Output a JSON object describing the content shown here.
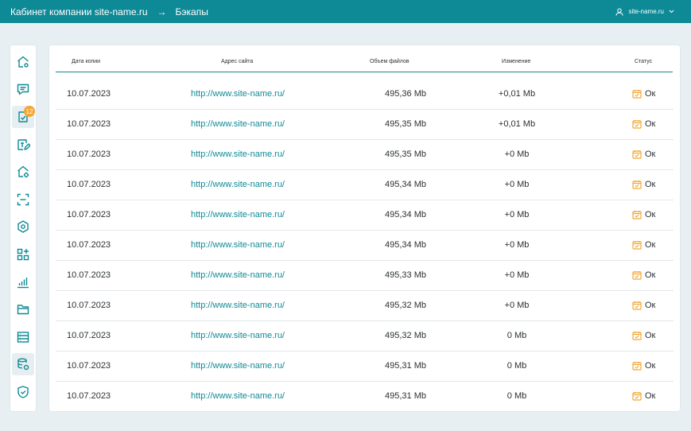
{
  "header": {
    "company": "Кабинет компании site-name.ru",
    "current": "Бэкапы",
    "account": "site-name.ru"
  },
  "sidebar": {
    "badge_count": "12",
    "items": [
      {
        "icon": "home-settings-icon"
      },
      {
        "icon": "chat-icon"
      },
      {
        "icon": "document-check-icon",
        "active": true
      },
      {
        "icon": "text-edit-icon"
      },
      {
        "icon": "home-gear-icon"
      },
      {
        "icon": "scan-frame-icon"
      },
      {
        "icon": "hexagon-settings-icon"
      },
      {
        "icon": "apps-add-icon"
      },
      {
        "icon": "bar-chart-icon"
      },
      {
        "icon": "folder-icon"
      },
      {
        "icon": "list-icon"
      },
      {
        "icon": "database-sync-icon",
        "active": true
      },
      {
        "icon": "shield-check-icon"
      }
    ]
  },
  "table": {
    "columns": [
      "Дата копии",
      "Адрес сайта",
      "Объем файлов",
      "Изменение",
      "Статус"
    ],
    "rows": [
      {
        "date": "10.07.2023",
        "url": "http://www.site-name.ru/",
        "size": "495,36 Mb",
        "change": "+0,01 Mb",
        "status": "Ок"
      },
      {
        "date": "10.07.2023",
        "url": "http://www.site-name.ru/",
        "size": "495,35 Mb",
        "change": "+0,01 Mb",
        "status": "Ок"
      },
      {
        "date": "10.07.2023",
        "url": "http://www.site-name.ru/",
        "size": "495,35 Mb",
        "change": "+0 Mb",
        "status": "Ок"
      },
      {
        "date": "10.07.2023",
        "url": "http://www.site-name.ru/",
        "size": "495,34 Mb",
        "change": "+0 Mb",
        "status": "Ок"
      },
      {
        "date": "10.07.2023",
        "url": "http://www.site-name.ru/",
        "size": "495,34 Mb",
        "change": "+0 Mb",
        "status": "Ок"
      },
      {
        "date": "10.07.2023",
        "url": "http://www.site-name.ru/",
        "size": "495,34 Mb",
        "change": "+0 Mb",
        "status": "Ок"
      },
      {
        "date": "10.07.2023",
        "url": "http://www.site-name.ru/",
        "size": "495,33 Mb",
        "change": "+0 Mb",
        "status": "Ок"
      },
      {
        "date": "10.07.2023",
        "url": "http://www.site-name.ru/",
        "size": "495,32 Mb",
        "change": "+0 Mb",
        "status": "Ок"
      },
      {
        "date": "10.07.2023",
        "url": "http://www.site-name.ru/",
        "size": "495,32 Mb",
        "change": "0 Mb",
        "status": "Ок"
      },
      {
        "date": "10.07.2023",
        "url": "http://www.site-name.ru/",
        "size": "495,31 Mb",
        "change": "0 Mb",
        "status": "Ок"
      },
      {
        "date": "10.07.2023",
        "url": "http://www.site-name.ru/",
        "size": "495,31 Mb",
        "change": "0 Mb",
        "status": "Ок"
      }
    ]
  },
  "colors": {
    "accent": "#0e8a96",
    "status_icon": "#f2a634",
    "background": "#e8eff2"
  }
}
